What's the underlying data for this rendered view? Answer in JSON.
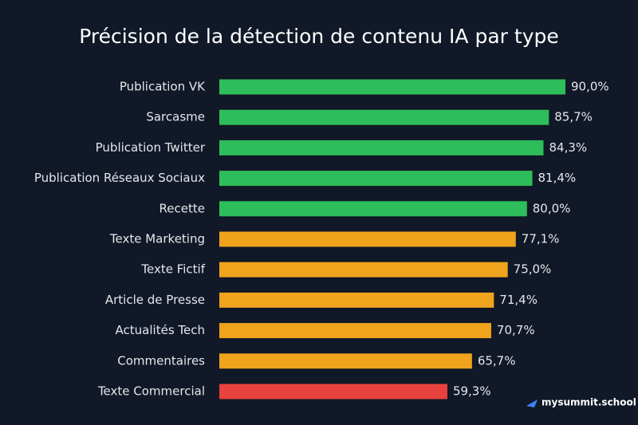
{
  "chart_data": {
    "type": "barh",
    "title": "Précision de la détection de contenu IA par type",
    "categories": [
      "Publication VK",
      "Sarcasme",
      "Publication Twitter",
      "Publication Réseaux Sociaux",
      "Recette",
      "Texte Marketing",
      "Texte Fictif",
      "Article de Presse",
      "Actualités Tech",
      "Commentaires",
      "Texte Commercial"
    ],
    "values": [
      90.0,
      85.7,
      84.3,
      81.4,
      80.0,
      77.1,
      75.0,
      71.4,
      70.7,
      65.7,
      59.3
    ],
    "value_labels": [
      "90,0%",
      "85,7%",
      "84,3%",
      "81,4%",
      "80,0%",
      "77,1%",
      "75,0%",
      "71,4%",
      "70,7%",
      "65,7%",
      "59,3%"
    ],
    "colors": [
      "#2dbd5a",
      "#2dbd5a",
      "#2dbd5a",
      "#2dbd5a",
      "#2dbd5a",
      "#f0a31c",
      "#f0a31c",
      "#f0a31c",
      "#f0a31c",
      "#f0a31c",
      "#e8413e"
    ]
  },
  "watermark": "mysummit.school"
}
